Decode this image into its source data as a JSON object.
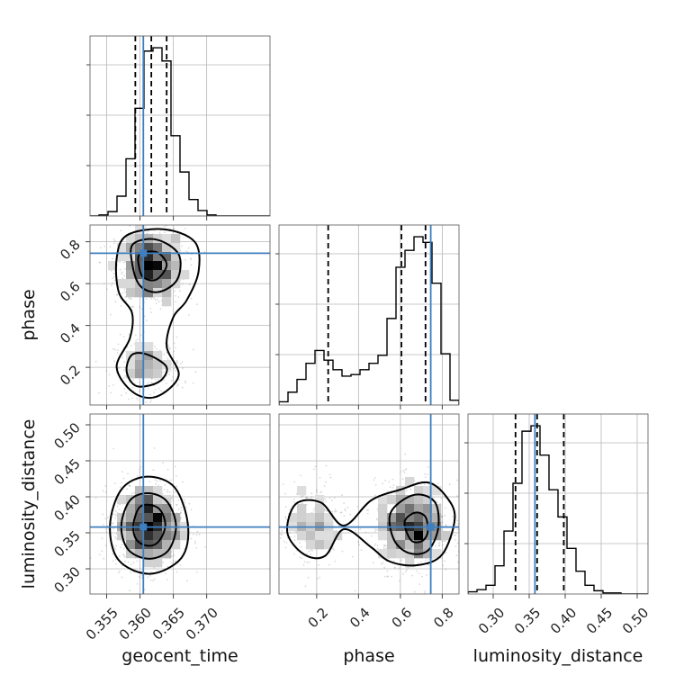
{
  "chart_data": {
    "type": "corner",
    "parameters": [
      "geocent_time",
      "phase",
      "luminosity_distance"
    ],
    "ranges": {
      "geocent_time": [
        0.3525,
        0.3795
      ],
      "phase": [
        0.02,
        0.88
      ],
      "luminosity_distance": [
        0.265,
        0.515
      ]
    },
    "ticks": {
      "geocent_time": [
        0.355,
        0.36,
        0.365,
        0.37
      ],
      "phase": [
        0.2,
        0.4,
        0.6,
        0.8
      ],
      "luminosity_distance": [
        0.3,
        0.35,
        0.4,
        0.45,
        0.5
      ]
    },
    "tick_labels": {
      "geocent_time": [
        "0.355",
        "0.360",
        "0.365",
        "0.370"
      ],
      "phase": [
        "0.2",
        "0.4",
        "0.6",
        "0.8"
      ],
      "luminosity_distance": [
        "0.30",
        "0.35",
        "0.40",
        "0.45",
        "0.50"
      ]
    },
    "truths": {
      "geocent_time": 0.3605,
      "phase": 0.745,
      "luminosity_distance": 0.358
    },
    "quantiles": {
      "geocent_time": [
        0.3593,
        0.3617,
        0.364
      ],
      "phase": [
        0.255,
        0.605,
        0.72
      ],
      "luminosity_distance": [
        0.331,
        0.361,
        0.398
      ]
    },
    "histograms": {
      "geocent_time": {
        "edges": [
          0.3525,
          0.35385,
          0.3552,
          0.35655,
          0.3579,
          0.35925,
          0.3606,
          0.36195,
          0.3633,
          0.36465,
          0.366,
          0.36735,
          0.3687,
          0.37005,
          0.3714,
          0.37275,
          0.3741,
          0.37545,
          0.3768,
          0.37815,
          0.3795
        ],
        "counts": [
          0,
          1,
          4,
          18,
          52,
          98,
          150,
          153,
          141,
          73,
          40,
          15,
          5,
          1,
          0,
          0,
          0,
          0,
          0,
          0
        ]
      },
      "phase": {
        "edges": [
          0.02,
          0.063,
          0.106,
          0.149,
          0.192,
          0.235,
          0.278,
          0.321,
          0.364,
          0.407,
          0.45,
          0.493,
          0.536,
          0.579,
          0.622,
          0.665,
          0.708,
          0.751,
          0.794,
          0.837,
          0.88
        ],
        "counts": [
          4,
          16,
          32,
          52,
          68,
          56,
          44,
          36,
          38,
          44,
          52,
          62,
          108,
          172,
          193,
          210,
          203,
          152,
          64,
          6
        ]
      },
      "luminosity_distance": {
        "edges": [
          0.265,
          0.2775,
          0.29,
          0.3025,
          0.315,
          0.3275,
          0.34,
          0.3525,
          0.365,
          0.3775,
          0.39,
          0.4025,
          0.415,
          0.4275,
          0.44,
          0.4525,
          0.465,
          0.4775,
          0.49,
          0.5025,
          0.515
        ],
        "counts": [
          2,
          4,
          8,
          26,
          58,
          102,
          150,
          155,
          128,
          96,
          71,
          42,
          21,
          8,
          3,
          1,
          1,
          0,
          0,
          0
        ]
      }
    },
    "density": {
      "geocent_time_vs_phase": {
        "contours": [
          [
            [
              0.358,
              0.83
            ],
            [
              0.3635,
              0.86
            ],
            [
              0.3682,
              0.8
            ],
            [
              0.3688,
              0.66
            ],
            [
              0.367,
              0.52
            ],
            [
              0.365,
              0.44
            ],
            [
              0.364,
              0.3
            ],
            [
              0.3658,
              0.16
            ],
            [
              0.3625,
              0.06
            ],
            [
              0.359,
              0.08
            ],
            [
              0.3565,
              0.2
            ],
            [
              0.3585,
              0.34
            ],
            [
              0.3588,
              0.46
            ],
            [
              0.3568,
              0.56
            ],
            [
              0.3565,
              0.72
            ]
          ],
          [
            [
              0.359,
              0.79
            ],
            [
              0.3625,
              0.81
            ],
            [
              0.3658,
              0.74
            ],
            [
              0.3656,
              0.62
            ],
            [
              0.3628,
              0.56
            ],
            [
              0.36,
              0.59
            ],
            [
              0.3588,
              0.7
            ]
          ],
          [
            [
              0.3588,
              0.26
            ],
            [
              0.3612,
              0.26
            ],
            [
              0.364,
              0.2
            ],
            [
              0.3628,
              0.13
            ],
            [
              0.3595,
              0.11
            ],
            [
              0.358,
              0.18
            ]
          ],
          [
            [
              0.36,
              0.74
            ],
            [
              0.3625,
              0.75
            ],
            [
              0.364,
              0.69
            ],
            [
              0.3625,
              0.62
            ],
            [
              0.3605,
              0.63
            ],
            [
              0.3598,
              0.69
            ]
          ]
        ]
      },
      "geocent_time_vs_luminosity_distance": {
        "contours": [
          [
            [
              0.3555,
              0.36
            ],
            [
              0.3572,
              0.41
            ],
            [
              0.361,
              0.428
            ],
            [
              0.3652,
              0.413
            ],
            [
              0.3672,
              0.36
            ],
            [
              0.3662,
              0.315
            ],
            [
              0.3615,
              0.293
            ],
            [
              0.3568,
              0.312
            ]
          ],
          [
            [
              0.3572,
              0.36
            ],
            [
              0.3585,
              0.395
            ],
            [
              0.3612,
              0.405
            ],
            [
              0.364,
              0.394
            ],
            [
              0.3654,
              0.36
            ],
            [
              0.3642,
              0.325
            ],
            [
              0.3612,
              0.314
            ],
            [
              0.3582,
              0.327
            ]
          ],
          [
            [
              0.359,
              0.36
            ],
            [
              0.3598,
              0.384
            ],
            [
              0.3612,
              0.389
            ],
            [
              0.363,
              0.382
            ],
            [
              0.3638,
              0.36
            ],
            [
              0.3628,
              0.338
            ],
            [
              0.3612,
              0.332
            ],
            [
              0.3595,
              0.34
            ]
          ]
        ]
      },
      "phase_vs_luminosity_distance": {
        "contours": [
          [
            [
              0.1,
              0.39
            ],
            [
              0.22,
              0.392
            ],
            [
              0.33,
              0.36
            ],
            [
              0.46,
              0.395
            ],
            [
              0.6,
              0.41
            ],
            [
              0.73,
              0.42
            ],
            [
              0.82,
              0.4
            ],
            [
              0.86,
              0.37
            ],
            [
              0.8,
              0.32
            ],
            [
              0.68,
              0.305
            ],
            [
              0.55,
              0.31
            ],
            [
              0.46,
              0.33
            ],
            [
              0.33,
              0.355
            ],
            [
              0.24,
              0.318
            ],
            [
              0.14,
              0.32
            ],
            [
              0.06,
              0.35
            ]
          ],
          [
            [
              0.55,
              0.375
            ],
            [
              0.62,
              0.397
            ],
            [
              0.7,
              0.403
            ],
            [
              0.77,
              0.39
            ],
            [
              0.78,
              0.355
            ],
            [
              0.73,
              0.325
            ],
            [
              0.64,
              0.322
            ],
            [
              0.57,
              0.34
            ]
          ],
          [
            [
              0.62,
              0.365
            ],
            [
              0.67,
              0.378
            ],
            [
              0.72,
              0.372
            ],
            [
              0.73,
              0.35
            ],
            [
              0.7,
              0.338
            ],
            [
              0.65,
              0.34
            ]
          ]
        ]
      }
    }
  }
}
